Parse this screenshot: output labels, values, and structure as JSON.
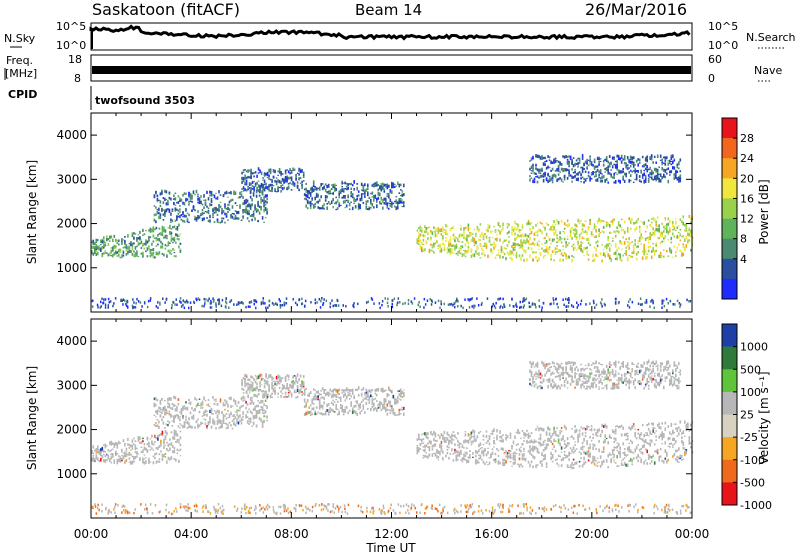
{
  "header": {
    "station": "Saskatoon (fitACF)",
    "beam": "Beam 14",
    "date": "26/Mar/2016"
  },
  "top_panels": {
    "nsky": {
      "label": "N.Sky",
      "axis_ticks": [
        "10^5",
        "10^0"
      ],
      "right_ticks": [
        "10^5",
        "10^0"
      ],
      "right_label": "N.Search"
    },
    "freq": {
      "label_lines": [
        "Freq.",
        "[MHz]"
      ],
      "axis_ticks": [
        "18",
        "8"
      ],
      "right_ticks": [
        "60",
        "0"
      ],
      "right_label": "Nave"
    },
    "cpid": {
      "label": "CPID",
      "value": "twofsound 3503"
    }
  },
  "time_axis": {
    "label": "Time UT",
    "ticks": [
      "00:00",
      "04:00",
      "08:00",
      "12:00",
      "16:00",
      "20:00",
      "00:00"
    ]
  },
  "power_panel": {
    "ylabel": "Slant Range [km]",
    "yticks": [
      "4000",
      "3000",
      "2000",
      "1000"
    ],
    "colorbar_label": "Power [dB]",
    "colorbar_ticks": [
      "28",
      "24",
      "20",
      "16",
      "12",
      "8",
      "4"
    ],
    "colorbar_colors": [
      "#e8141a",
      "#f2661e",
      "#f5a623",
      "#f0e63c",
      "#9ad14b",
      "#5fb45a",
      "#4a8a72",
      "#2a4ea0",
      "#1f2cff"
    ]
  },
  "velocity_panel": {
    "ylabel": "Slant Range [km]",
    "yticks": [
      "4000",
      "3000",
      "2000",
      "1000"
    ],
    "colorbar_label": "Velocity [m s⁻¹]",
    "colorbar_ticks": [
      "1000",
      "500",
      "100",
      "25",
      "-25",
      "-100",
      "-500",
      "-1000"
    ],
    "colorbar_colors": [
      "#1e3fa8",
      "#2f7a3a",
      "#5ec43a",
      "#b7b7b7",
      "#d8d2c0",
      "#f5a623",
      "#f06a1e",
      "#e8141a"
    ]
  },
  "chart_data": [
    {
      "type": "heatmap",
      "title": "Power",
      "xlabel": "Time UT",
      "ylabel": "Slant Range [km]",
      "x_range_hours": [
        0,
        24
      ],
      "ylim": [
        0,
        4500
      ],
      "colorbar": {
        "label": "Power [dB]",
        "range": [
          0,
          32
        ]
      },
      "echo_bands": [
        {
          "t_start": 0.0,
          "t_end": 3.6,
          "range_low": 1250,
          "range_high": 1900,
          "typical_power_db": 10
        },
        {
          "t_start": 2.5,
          "t_end": 7.0,
          "range_low": 2000,
          "range_high": 2700,
          "typical_power_db": 6
        },
        {
          "t_start": 6.0,
          "t_end": 8.5,
          "range_low": 2700,
          "range_high": 3200,
          "typical_power_db": 5
        },
        {
          "t_start": 8.5,
          "t_end": 12.5,
          "range_low": 2300,
          "range_high": 2900,
          "typical_power_db": 6
        },
        {
          "t_start": 13.0,
          "t_end": 24.0,
          "range_low": 1100,
          "range_high": 2200,
          "typical_power_db": 18
        },
        {
          "t_start": 17.5,
          "t_end": 23.5,
          "range_low": 2900,
          "range_high": 3500,
          "typical_power_db": 5
        }
      ]
    },
    {
      "type": "heatmap",
      "title": "Velocity",
      "xlabel": "Time UT",
      "ylabel": "Slant Range [km]",
      "x_range_hours": [
        0,
        24
      ],
      "ylim": [
        0,
        4500
      ],
      "colorbar": {
        "label": "Velocity [m s⁻¹]",
        "range": [
          -1000,
          1000
        ]
      },
      "echo_bands": [
        {
          "t_start": 0.0,
          "t_end": 3.6,
          "range_low": 1250,
          "range_high": 1900,
          "typical_velocity": 0
        },
        {
          "t_start": 2.5,
          "t_end": 7.0,
          "range_low": 2000,
          "range_high": 2700,
          "typical_velocity": 0
        },
        {
          "t_start": 6.0,
          "t_end": 8.5,
          "range_low": 2700,
          "range_high": 3200,
          "typical_velocity": 0
        },
        {
          "t_start": 8.5,
          "t_end": 12.5,
          "range_low": 2300,
          "range_high": 2900,
          "typical_velocity": 0
        },
        {
          "t_start": 13.0,
          "t_end": 24.0,
          "range_low": 1100,
          "range_high": 2200,
          "typical_velocity": 0
        },
        {
          "t_start": 17.5,
          "t_end": 23.5,
          "range_low": 2900,
          "range_high": 3500,
          "typical_velocity": 0
        }
      ]
    }
  ]
}
